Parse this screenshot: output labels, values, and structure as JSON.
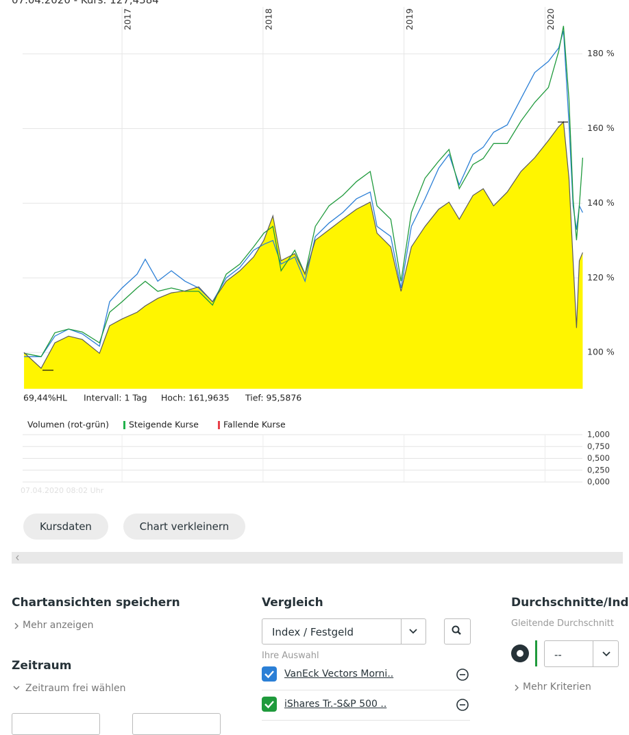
{
  "header": {
    "quote": "07.04.2020  -  Kurs: 127,4384"
  },
  "chart_data": [
    {
      "type": "line",
      "x": [
        2016.305,
        2016.426,
        2016.524,
        2016.621,
        2016.718,
        2016.84,
        2016.912,
        2017.0,
        2017.107,
        2017.165,
        2017.253,
        2017.35,
        2017.447,
        2017.544,
        2017.642,
        2017.739,
        2017.836,
        2017.933,
        2018.006,
        2018.07,
        2018.128,
        2018.225,
        2018.298,
        2018.371,
        2018.468,
        2018.565,
        2018.663,
        2018.76,
        2018.808,
        2018.906,
        2018.979,
        2019.052,
        2019.149,
        2019.246,
        2019.319,
        2019.392,
        2019.489,
        2019.562,
        2019.635,
        2019.732,
        2019.829,
        2019.927,
        2020.024,
        2020.097,
        2020.131,
        2020.17,
        2020.199,
        2020.223,
        2020.243,
        2020.267
      ],
      "series": [
        {
          "color": "#fff500",
          "line_color": "#5a5a5a",
          "area": true,
          "values": [
            100,
            95.8,
            102.6,
            104.4,
            103.5,
            99.8,
            107.2,
            109,
            110.8,
            112.5,
            114.5,
            116,
            116.5,
            117.6,
            113.6,
            119.1,
            121.9,
            125.6,
            130.1,
            136.6,
            124.6,
            126.5,
            121,
            130.1,
            132.9,
            135.7,
            138.4,
            140.3,
            132,
            128.3,
            116.4,
            128.3,
            133.8,
            138.4,
            140.3,
            135.7,
            142.1,
            143.9,
            139.3,
            143,
            148.5,
            152.2,
            156.8,
            160.5,
            161.8,
            146.7,
            124.6,
            106.6,
            124.6,
            126.8
          ]
        },
        {
          "name": "VanEck Vectors Morni..",
          "color": "#2b7fd6",
          "values": [
            98.9,
            98.9,
            104.4,
            106.3,
            105,
            101.7,
            113.6,
            117.3,
            121,
            125,
            119.1,
            121.9,
            119.1,
            117.3,
            113.6,
            120,
            122.8,
            127.4,
            129,
            130,
            123.7,
            125.6,
            119.1,
            131.1,
            134.7,
            137.5,
            141.2,
            143,
            133.8,
            131.1,
            117.3,
            133.8,
            141.2,
            149.4,
            153.1,
            144.9,
            153.1,
            155,
            159,
            161,
            168,
            175,
            178,
            181.6,
            186.2,
            161.4,
            139.3,
            132.9,
            139.3,
            137.5
          ]
        },
        {
          "name": "iShares Tr.-S&P 500 ..",
          "color": "#1f9a3c",
          "values": [
            99.8,
            98.9,
            105.3,
            106.3,
            105.5,
            102.6,
            110.8,
            113.6,
            117.3,
            119.1,
            116.4,
            117.3,
            116.4,
            116.4,
            112.7,
            121,
            123.7,
            128.3,
            132,
            133.8,
            121.9,
            127.4,
            121,
            133.8,
            139.3,
            142.1,
            145.8,
            148.5,
            139.3,
            135.7,
            119.1,
            137.5,
            146.7,
            151.3,
            154.4,
            143.9,
            150.4,
            152,
            156,
            156,
            162,
            167,
            171,
            180.7,
            187.5,
            167.8,
            141.2,
            130.1,
            139.3,
            152.2
          ]
        }
      ],
      "xlim": [
        2016.295,
        2020.265
      ],
      "xticks": [
        2017,
        2018,
        2019,
        2020
      ],
      "ylim": [
        90.3,
        192.6
      ],
      "yticks": [
        {
          "value": 100,
          "label": "100 %"
        },
        {
          "value": 120,
          "label": "120 %"
        },
        {
          "value": 140,
          "label": "140 %"
        },
        {
          "value": 160,
          "label": "160 %"
        },
        {
          "value": 180,
          "label": "180 %"
        }
      ],
      "grid": true,
      "stats": [
        "69,44%HL",
        "Intervall: 1 Tag",
        "Hoch: 161,9635",
        "Tief: 95,5876"
      ]
    },
    {
      "type": "bar",
      "title": "Volumen (rot-grün)",
      "legend": [
        {
          "name": "Steigende Kurse",
          "color": "#22b14c"
        },
        {
          "name": "Fallende Kurse",
          "color": "#e8404a"
        }
      ],
      "ylim": [
        0,
        1
      ],
      "yticks": [
        {
          "value": 0,
          "label": "0,000"
        },
        {
          "value": 0.25,
          "label": "0,250"
        },
        {
          "value": 0.5,
          "label": "0,500"
        },
        {
          "value": 0.75,
          "label": "0,750"
        },
        {
          "value": 1,
          "label": "1,000"
        }
      ],
      "grid": true,
      "timestamp": "07.04.2020 08:02 Uhr"
    }
  ],
  "buttons": [
    "Kursdaten",
    "Chart verkleinern"
  ],
  "save_views": {
    "title": "Chartansichten speichern",
    "link": "Mehr anzeigen"
  },
  "period": {
    "title": "Zeitraum",
    "link": "Zeitraum frei wählen"
  },
  "compare": {
    "title": "Vergleich",
    "select": "Index / Festgeld",
    "selection_label": "Ihre Auswahl"
  },
  "averages": {
    "title": "Durchschnitte/Ind",
    "subtitle": "Gleitende Durchschnitt",
    "select": "--",
    "link": "Mehr Kriterien"
  }
}
